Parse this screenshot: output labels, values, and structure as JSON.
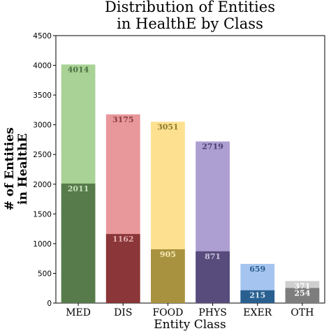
{
  "chart_data": {
    "type": "bar",
    "title_lines": [
      "Distribution of Entities",
      "in HealthE by Class"
    ],
    "xlabel": "Entity Class",
    "ylabel_lines": [
      "# of Entities",
      "in HealthE"
    ],
    "categories": [
      "MED",
      "DIS",
      "FOOD",
      "PHYS",
      "EXER",
      "OTH"
    ],
    "series": [
      {
        "values": [
          4014,
          3175,
          3051,
          2719,
          659,
          371
        ]
      },
      {
        "values": [
          2011,
          1162,
          905,
          871,
          215,
          254
        ]
      }
    ],
    "yticks": [
      0,
      500,
      1000,
      1500,
      2000,
      2500,
      3000,
      3500,
      4000,
      4500
    ],
    "ylim": [
      0,
      4500
    ],
    "grid": false,
    "colors": {
      "light": [
        "#a9d396",
        "#e8979a",
        "#fde190",
        "#ad9fd1",
        "#a5c5f0",
        "#cfcfcf"
      ],
      "dark": [
        "#577b4b",
        "#8b3638",
        "#a89240",
        "#574c7c",
        "#2a6090",
        "#7d7d7d"
      ],
      "light_label": [
        "#4a6e40",
        "#8b3a3c",
        "#8a7a30",
        "#4a3d70",
        "#2b5c8c",
        "#ffffff"
      ],
      "dark_label": [
        "#c6e1bb",
        "#e3aeb0",
        "#f7e9b6",
        "#cec5e3",
        "#d6e4f5",
        "#ffffff"
      ]
    }
  }
}
